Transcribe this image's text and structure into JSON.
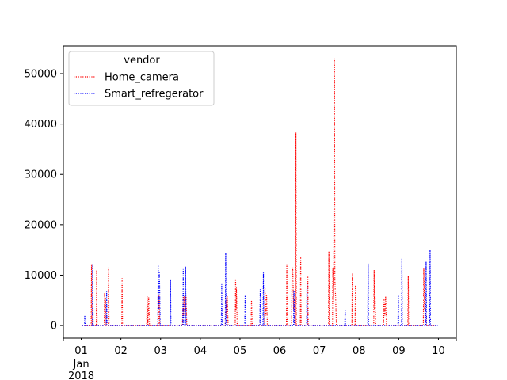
{
  "chart_data": {
    "type": "line",
    "line_style": "dotted",
    "title": "",
    "xlabel": "",
    "ylabel": "",
    "x_tick_labels": [
      {
        "day": 1,
        "label": "01",
        "sublabel": "Jan\n2018"
      },
      {
        "day": 2,
        "label": "02"
      },
      {
        "day": 3,
        "label": "03"
      },
      {
        "day": 4,
        "label": "04"
      },
      {
        "day": 5,
        "label": "05"
      },
      {
        "day": 6,
        "label": "06"
      },
      {
        "day": 7,
        "label": "07"
      },
      {
        "day": 8,
        "label": "08"
      },
      {
        "day": 9,
        "label": "09"
      },
      {
        "day": 10,
        "label": "10"
      }
    ],
    "xlim": [
      0.55,
      10.45
    ],
    "ylim": [
      -2500,
      55500
    ],
    "y_ticks": [
      0,
      10000,
      20000,
      30000,
      40000,
      50000
    ],
    "legend": {
      "title": "vendor",
      "placement": "top-left"
    },
    "series": [
      {
        "name": "Home_camera",
        "color": "#ff0000",
        "points": [
          {
            "x": 1.02,
            "y": 0
          },
          {
            "x": 1.25,
            "y": 0
          },
          {
            "x": 1.26,
            "y": 12000
          },
          {
            "x": 1.27,
            "y": 0
          },
          {
            "x": 1.38,
            "y": 0
          },
          {
            "x": 1.39,
            "y": 11000
          },
          {
            "x": 1.4,
            "y": 0
          },
          {
            "x": 1.58,
            "y": 0
          },
          {
            "x": 1.59,
            "y": 6500
          },
          {
            "x": 1.6,
            "y": 2000
          },
          {
            "x": 1.61,
            "y": 5500
          },
          {
            "x": 1.63,
            "y": 0
          },
          {
            "x": 1.68,
            "y": 0
          },
          {
            "x": 1.69,
            "y": 11500
          },
          {
            "x": 1.7,
            "y": 0
          },
          {
            "x": 2.02,
            "y": 0
          },
          {
            "x": 2.03,
            "y": 9500
          },
          {
            "x": 2.04,
            "y": 0
          },
          {
            "x": 2.65,
            "y": 0
          },
          {
            "x": 2.66,
            "y": 5800
          },
          {
            "x": 2.68,
            "y": 0
          },
          {
            "x": 2.7,
            "y": 5600
          },
          {
            "x": 2.72,
            "y": 0
          },
          {
            "x": 2.95,
            "y": 0
          },
          {
            "x": 2.96,
            "y": 6000
          },
          {
            "x": 2.98,
            "y": 0
          },
          {
            "x": 3.55,
            "y": 0
          },
          {
            "x": 3.57,
            "y": 6000
          },
          {
            "x": 3.58,
            "y": 2000
          },
          {
            "x": 3.6,
            "y": 5800
          },
          {
            "x": 3.62,
            "y": 3000
          },
          {
            "x": 3.64,
            "y": 5800
          },
          {
            "x": 3.66,
            "y": 0
          },
          {
            "x": 4.63,
            "y": 0
          },
          {
            "x": 4.64,
            "y": 5500
          },
          {
            "x": 4.66,
            "y": 2000
          },
          {
            "x": 4.68,
            "y": 5800
          },
          {
            "x": 4.7,
            "y": 0
          },
          {
            "x": 4.88,
            "y": 0
          },
          {
            "x": 4.89,
            "y": 9000
          },
          {
            "x": 4.9,
            "y": 3000
          },
          {
            "x": 4.91,
            "y": 7500
          },
          {
            "x": 4.93,
            "y": 0
          },
          {
            "x": 5.28,
            "y": 0
          },
          {
            "x": 5.29,
            "y": 5000
          },
          {
            "x": 5.31,
            "y": 0
          },
          {
            "x": 5.62,
            "y": 0
          },
          {
            "x": 5.63,
            "y": 7500
          },
          {
            "x": 5.65,
            "y": 2000
          },
          {
            "x": 5.67,
            "y": 6000
          },
          {
            "x": 5.69,
            "y": 0
          },
          {
            "x": 6.17,
            "y": 0
          },
          {
            "x": 6.18,
            "y": 12200
          },
          {
            "x": 6.19,
            "y": 0
          },
          {
            "x": 6.3,
            "y": 0
          },
          {
            "x": 6.31,
            "y": 9000
          },
          {
            "x": 6.33,
            "y": 11500
          },
          {
            "x": 6.35,
            "y": 3000
          },
          {
            "x": 6.37,
            "y": 5500
          },
          {
            "x": 6.38,
            "y": 0
          },
          {
            "x": 6.4,
            "y": 0
          },
          {
            "x": 6.41,
            "y": 38300
          },
          {
            "x": 6.42,
            "y": 0
          },
          {
            "x": 6.52,
            "y": 0
          },
          {
            "x": 6.53,
            "y": 13600
          },
          {
            "x": 6.54,
            "y": 0
          },
          {
            "x": 6.7,
            "y": 0
          },
          {
            "x": 6.71,
            "y": 9800
          },
          {
            "x": 6.72,
            "y": 0
          },
          {
            "x": 7.23,
            "y": 0
          },
          {
            "x": 7.24,
            "y": 14700
          },
          {
            "x": 7.25,
            "y": 0
          },
          {
            "x": 7.33,
            "y": 0
          },
          {
            "x": 7.34,
            "y": 11500
          },
          {
            "x": 7.36,
            "y": 5000
          },
          {
            "x": 7.38,
            "y": 53000
          },
          {
            "x": 7.39,
            "y": 9000
          },
          {
            "x": 7.41,
            "y": 5500
          },
          {
            "x": 7.43,
            "y": 0
          },
          {
            "x": 7.82,
            "y": 0
          },
          {
            "x": 7.83,
            "y": 10300
          },
          {
            "x": 7.84,
            "y": 0
          },
          {
            "x": 7.9,
            "y": 0
          },
          {
            "x": 7.91,
            "y": 8000
          },
          {
            "x": 7.92,
            "y": 0
          },
          {
            "x": 8.37,
            "y": 0
          },
          {
            "x": 8.38,
            "y": 11000
          },
          {
            "x": 8.39,
            "y": 3000
          },
          {
            "x": 8.4,
            "y": 7000
          },
          {
            "x": 8.42,
            "y": 0
          },
          {
            "x": 8.62,
            "y": 0
          },
          {
            "x": 8.63,
            "y": 5500
          },
          {
            "x": 8.65,
            "y": 2000
          },
          {
            "x": 8.67,
            "y": 5800
          },
          {
            "x": 8.69,
            "y": 0
          },
          {
            "x": 9.23,
            "y": 0
          },
          {
            "x": 9.24,
            "y": 9800
          },
          {
            "x": 9.25,
            "y": 0
          },
          {
            "x": 9.62,
            "y": 0
          },
          {
            "x": 9.63,
            "y": 11500
          },
          {
            "x": 9.65,
            "y": 3000
          },
          {
            "x": 9.67,
            "y": 6000
          },
          {
            "x": 9.69,
            "y": 0
          },
          {
            "x": 9.98,
            "y": 0
          }
        ]
      },
      {
        "name": "Smart_refregerator",
        "color": "#0000ff",
        "points": [
          {
            "x": 1.02,
            "y": 0
          },
          {
            "x": 1.08,
            "y": 0
          },
          {
            "x": 1.09,
            "y": 2000
          },
          {
            "x": 1.1,
            "y": 0
          },
          {
            "x": 1.28,
            "y": 0
          },
          {
            "x": 1.29,
            "y": 12200
          },
          {
            "x": 1.3,
            "y": 0
          },
          {
            "x": 1.63,
            "y": 0
          },
          {
            "x": 1.64,
            "y": 7000
          },
          {
            "x": 1.65,
            "y": 0
          },
          {
            "x": 2.93,
            "y": 0
          },
          {
            "x": 2.94,
            "y": 12000
          },
          {
            "x": 2.95,
            "y": 3000
          },
          {
            "x": 2.97,
            "y": 10500
          },
          {
            "x": 2.99,
            "y": 0
          },
          {
            "x": 3.24,
            "y": 0
          },
          {
            "x": 3.25,
            "y": 9000
          },
          {
            "x": 3.26,
            "y": 0
          },
          {
            "x": 3.56,
            "y": 0
          },
          {
            "x": 3.57,
            "y": 11200
          },
          {
            "x": 3.58,
            "y": 0
          },
          {
            "x": 3.62,
            "y": 0
          },
          {
            "x": 3.63,
            "y": 11700
          },
          {
            "x": 3.64,
            "y": 0
          },
          {
            "x": 4.53,
            "y": 0
          },
          {
            "x": 4.54,
            "y": 8200
          },
          {
            "x": 4.55,
            "y": 0
          },
          {
            "x": 4.63,
            "y": 0
          },
          {
            "x": 4.64,
            "y": 14400
          },
          {
            "x": 4.65,
            "y": 0
          },
          {
            "x": 5.12,
            "y": 0
          },
          {
            "x": 5.13,
            "y": 6000
          },
          {
            "x": 5.14,
            "y": 0
          },
          {
            "x": 5.5,
            "y": 0
          },
          {
            "x": 5.51,
            "y": 7200
          },
          {
            "x": 5.52,
            "y": 0
          },
          {
            "x": 5.58,
            "y": 0
          },
          {
            "x": 5.59,
            "y": 10500
          },
          {
            "x": 5.6,
            "y": 0
          },
          {
            "x": 6.35,
            "y": 0
          },
          {
            "x": 6.36,
            "y": 7000
          },
          {
            "x": 6.37,
            "y": 0
          },
          {
            "x": 6.68,
            "y": 0
          },
          {
            "x": 6.69,
            "y": 8500
          },
          {
            "x": 6.7,
            "y": 0
          },
          {
            "x": 7.64,
            "y": 0
          },
          {
            "x": 7.65,
            "y": 3200
          },
          {
            "x": 7.66,
            "y": 0
          },
          {
            "x": 8.22,
            "y": 0
          },
          {
            "x": 8.23,
            "y": 12300
          },
          {
            "x": 8.24,
            "y": 0
          },
          {
            "x": 8.98,
            "y": 0
          },
          {
            "x": 8.99,
            "y": 6000
          },
          {
            "x": 9.0,
            "y": 0
          },
          {
            "x": 9.07,
            "y": 0
          },
          {
            "x": 9.08,
            "y": 13300
          },
          {
            "x": 9.09,
            "y": 0
          },
          {
            "x": 9.68,
            "y": 0
          },
          {
            "x": 9.69,
            "y": 12700
          },
          {
            "x": 9.7,
            "y": 0
          },
          {
            "x": 9.78,
            "y": 0
          },
          {
            "x": 9.79,
            "y": 15000
          },
          {
            "x": 9.8,
            "y": 0
          },
          {
            "x": 9.98,
            "y": 0
          }
        ]
      }
    ]
  }
}
